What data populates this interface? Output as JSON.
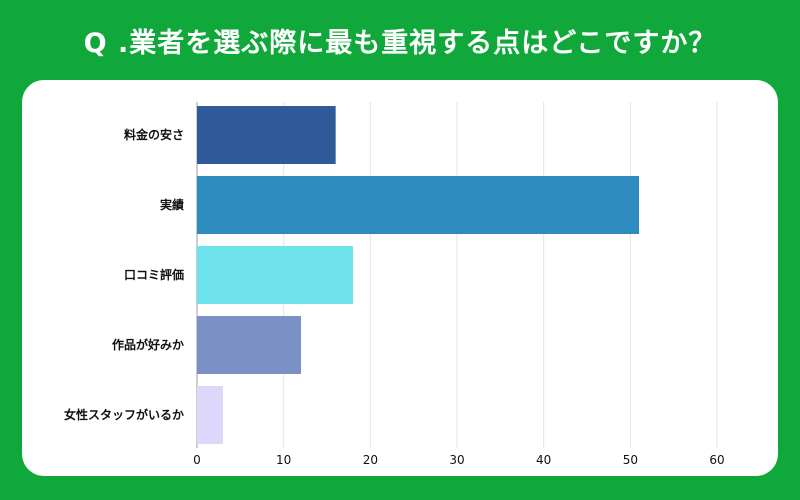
{
  "header": {
    "title": "Q .業者を選ぶ際に最も重視する点はどこですか？"
  },
  "chart_data": {
    "type": "bar",
    "orientation": "horizontal",
    "categories": [
      "料金の安さ",
      "実績",
      "口コミ評価",
      "作品が好みか",
      "女性スタッフがいるか"
    ],
    "values": [
      16,
      51,
      18,
      12,
      3
    ],
    "colors": [
      "#2f5b9b",
      "#2e8bbd",
      "#6ee3ec",
      "#7b90c4",
      "#dcd8fb"
    ],
    "xlim": [
      0,
      60
    ],
    "xticks": [
      0,
      10,
      20,
      30,
      40,
      50,
      60
    ],
    "grid": true,
    "background_color": "#10a83a"
  }
}
